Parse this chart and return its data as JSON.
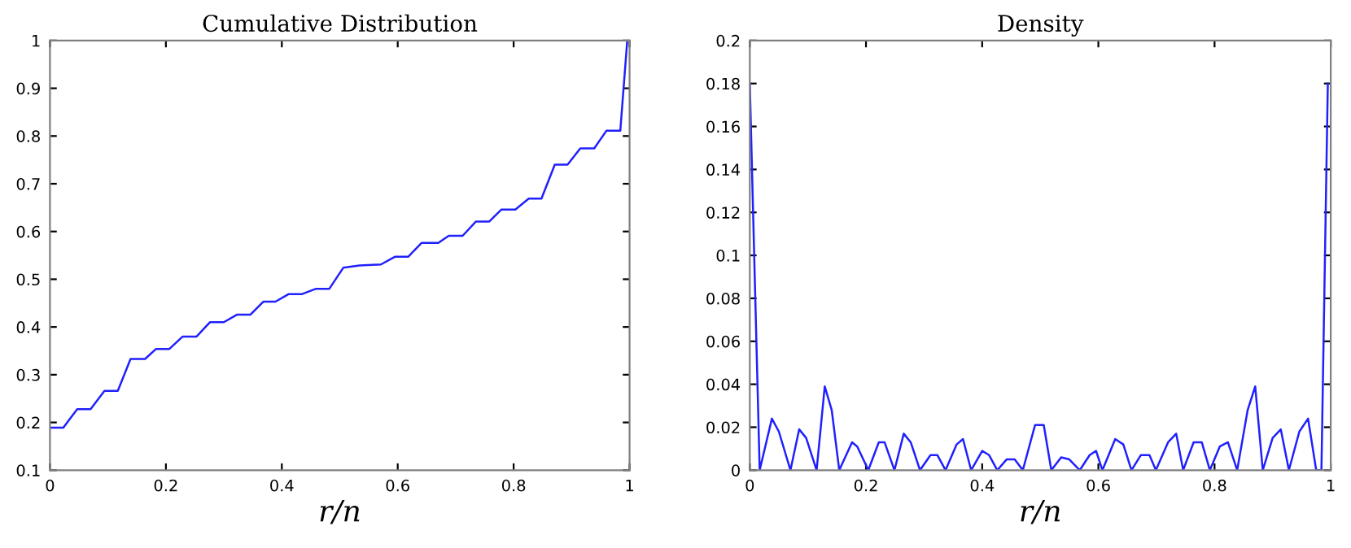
{
  "chart_data": [
    {
      "type": "line",
      "title": "Cumulative Distribution",
      "xlabel": "r/n",
      "xlim": [
        0,
        1
      ],
      "xticks": [
        0,
        0.2,
        0.4,
        0.6,
        0.8,
        1
      ],
      "ylim": [
        0.1,
        1
      ],
      "yticks": [
        0.1,
        0.2,
        0.3,
        0.4,
        0.5,
        0.6,
        0.7,
        0.8,
        0.9,
        1
      ],
      "marker": "none",
      "line_style": "solid",
      "series": [
        {
          "color": "#2020ff",
          "x": [
            0,
            0.023,
            0.047,
            0.07,
            0.094,
            0.117,
            0.139,
            0.164,
            0.183,
            0.206,
            0.229,
            0.253,
            0.276,
            0.3,
            0.323,
            0.346,
            0.368,
            0.389,
            0.412,
            0.435,
            0.459,
            0.482,
            0.506,
            0.534,
            0.571,
            0.595,
            0.618,
            0.641,
            0.67,
            0.688,
            0.712,
            0.735,
            0.758,
            0.779,
            0.803,
            0.826,
            0.848,
            0.871,
            0.893,
            0.915,
            0.939,
            0.96,
            0.984,
            0.996
          ],
          "values": [
            0.189,
            0.189,
            0.228,
            0.228,
            0.266,
            0.266,
            0.333,
            0.333,
            0.354,
            0.354,
            0.38,
            0.38,
            0.41,
            0.41,
            0.426,
            0.426,
            0.453,
            0.453,
            0.469,
            0.469,
            0.48,
            0.48,
            0.524,
            0.529,
            0.531,
            0.547,
            0.547,
            0.576,
            0.576,
            0.591,
            0.591,
            0.621,
            0.621,
            0.646,
            0.646,
            0.669,
            0.669,
            0.74,
            0.74,
            0.774,
            0.774,
            0.811,
            0.811,
            1.0
          ]
        }
      ]
    },
    {
      "type": "line",
      "title": "Density",
      "xlabel": "r/n",
      "xlim": [
        0,
        1
      ],
      "xticks": [
        0,
        0.2,
        0.4,
        0.6,
        0.8,
        1
      ],
      "ylim": [
        0,
        0.2
      ],
      "yticks": [
        0,
        0.02,
        0.04,
        0.06,
        0.08,
        0.1,
        0.12,
        0.14,
        0.16,
        0.18,
        0.2
      ],
      "marker": "none",
      "line_style": "solid",
      "series": [
        {
          "color": "#2020ff",
          "x": [
            0,
            0.017,
            0.038,
            0.05,
            0.07,
            0.085,
            0.097,
            0.115,
            0.129,
            0.141,
            0.154,
            0.176,
            0.185,
            0.204,
            0.222,
            0.232,
            0.249,
            0.265,
            0.277,
            0.293,
            0.311,
            0.323,
            0.337,
            0.356,
            0.367,
            0.381,
            0.4,
            0.412,
            0.426,
            0.442,
            0.456,
            0.47,
            0.491,
            0.506,
            0.519,
            0.536,
            0.55,
            0.568,
            0.585,
            0.596,
            0.607,
            0.629,
            0.643,
            0.657,
            0.673,
            0.688,
            0.699,
            0.72,
            0.734,
            0.746,
            0.764,
            0.778,
            0.792,
            0.809,
            0.823,
            0.839,
            0.857,
            0.87,
            0.883,
            0.9,
            0.914,
            0.928,
            0.946,
            0.961,
            0.975,
            0.984,
            0.995
          ],
          "values": [
            0.18,
            0,
            0.024,
            0.018,
            0,
            0.019,
            0.015,
            0,
            0.039,
            0.028,
            0,
            0.013,
            0.011,
            0,
            0.013,
            0.013,
            0,
            0.017,
            0.013,
            0,
            0.007,
            0.007,
            0,
            0.012,
            0.0145,
            0,
            0.009,
            0.007,
            0,
            0.005,
            0.005,
            0,
            0.021,
            0.021,
            0,
            0.006,
            0.005,
            0,
            0.007,
            0.009,
            0,
            0.0145,
            0.012,
            0,
            0.007,
            0.007,
            0,
            0.013,
            0.017,
            0,
            0.013,
            0.013,
            0,
            0.011,
            0.013,
            0,
            0.028,
            0.039,
            0,
            0.015,
            0.019,
            0,
            0.018,
            0.024,
            0,
            0,
            0.18
          ]
        }
      ]
    }
  ]
}
